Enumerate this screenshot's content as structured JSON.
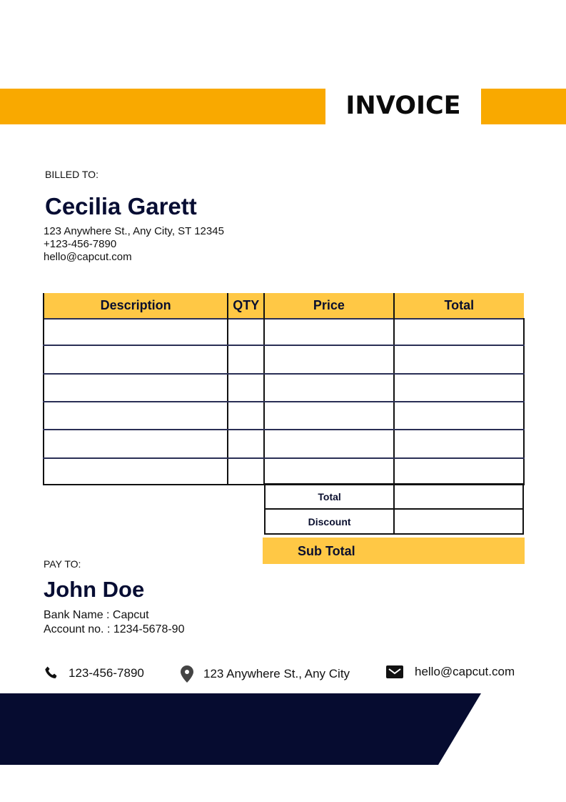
{
  "header": {
    "title": "INVOICE",
    "accent_color": "#F9A900"
  },
  "billed_to": {
    "label": "BILLED TO:",
    "name": "Cecilia Garett",
    "address": "123 Anywhere St., Any City, ST 12345",
    "phone": "+123-456-7890",
    "email": "hello@capcut.com"
  },
  "table": {
    "columns": [
      "Description",
      "QTY",
      "Price",
      "Total"
    ],
    "rows": [
      [
        "",
        "",
        "",
        ""
      ],
      [
        "",
        "",
        "",
        ""
      ],
      [
        "",
        "",
        "",
        ""
      ],
      [
        "",
        "",
        "",
        ""
      ],
      [
        "",
        "",
        "",
        ""
      ],
      [
        "",
        "",
        "",
        ""
      ]
    ],
    "header_color": "#FFC845"
  },
  "summary": {
    "total_label": "Total",
    "total_value": "",
    "discount_label": "Discount",
    "discount_value": "",
    "subtotal_label": "Sub Total"
  },
  "pay_to": {
    "label": "PAY TO:",
    "name": "John Doe",
    "bank": "Bank Name : Capcut",
    "account": "Account no. : 1234-5678-90"
  },
  "footer": {
    "phone_icon": "phone-icon",
    "phone": "123-456-7890",
    "location_icon": "map-pin-icon",
    "address": "123 Anywhere St., Any City",
    "email_icon": "envelope-icon",
    "email": "hello@capcut.com",
    "band_color": "#060C30"
  }
}
